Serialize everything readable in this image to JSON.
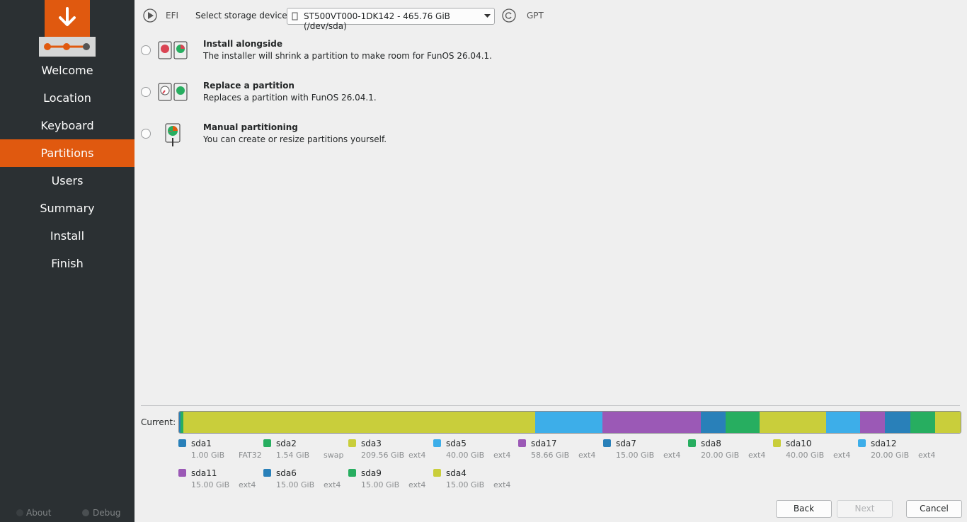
{
  "sidebar": {
    "items": [
      "Welcome",
      "Location",
      "Keyboard",
      "Partitions",
      "Users",
      "Summary",
      "Install",
      "Finish"
    ],
    "active": 3,
    "about": "About",
    "debug": "Debug"
  },
  "toolbar": {
    "boot_mode": "EFI",
    "device_label": "Select storage device:",
    "device": "ST500VT000-1DK142 - 465.76 GiB (/dev/sda)",
    "partition_table": "GPT"
  },
  "options": [
    {
      "title": "Install alongside",
      "description": "The installer will shrink a partition to make room for FunOS 26.04.1."
    },
    {
      "title": "Replace a partition",
      "description": "Replaces a partition with FunOS 26.04.1."
    },
    {
      "title": "Manual partitioning",
      "description": "You can create or resize partitions yourself."
    }
  ],
  "current": {
    "label": "Current:",
    "partitions": [
      {
        "name": "sda1",
        "size": "1.00 GiB",
        "filesystem": "FAT32",
        "color": "#2980b9"
      },
      {
        "name": "sda2",
        "size": "1.54 GiB",
        "filesystem": "swap",
        "color": "#27ae60"
      },
      {
        "name": "sda3",
        "size": "209.56 GiB",
        "filesystem": "ext4",
        "color": "#c9ce3b"
      },
      {
        "name": "sda5",
        "size": "40.00 GiB",
        "filesystem": "ext4",
        "color": "#3daee9"
      },
      {
        "name": "sda17",
        "size": "58.66 GiB",
        "filesystem": "ext4",
        "color": "#9b59b6"
      },
      {
        "name": "sda7",
        "size": "15.00 GiB",
        "filesystem": "ext4",
        "color": "#2980b9"
      },
      {
        "name": "sda8",
        "size": "20.00 GiB",
        "filesystem": "ext4",
        "color": "#27ae60"
      },
      {
        "name": "sda10",
        "size": "40.00 GiB",
        "filesystem": "ext4",
        "color": "#c9ce3b"
      },
      {
        "name": "sda12",
        "size": "20.00 GiB",
        "filesystem": "ext4",
        "color": "#3daee9"
      },
      {
        "name": "sda11",
        "size": "15.00 GiB",
        "filesystem": "ext4",
        "color": "#9b59b6"
      },
      {
        "name": "sda6",
        "size": "15.00 GiB",
        "filesystem": "ext4",
        "color": "#2980b9"
      },
      {
        "name": "sda9",
        "size": "15.00 GiB",
        "filesystem": "ext4",
        "color": "#27ae60"
      },
      {
        "name": "sda4",
        "size": "15.00 GiB",
        "filesystem": "ext4",
        "color": "#c9ce3b"
      }
    ]
  },
  "buttons": [
    "Back",
    "Next",
    "Cancel"
  ]
}
